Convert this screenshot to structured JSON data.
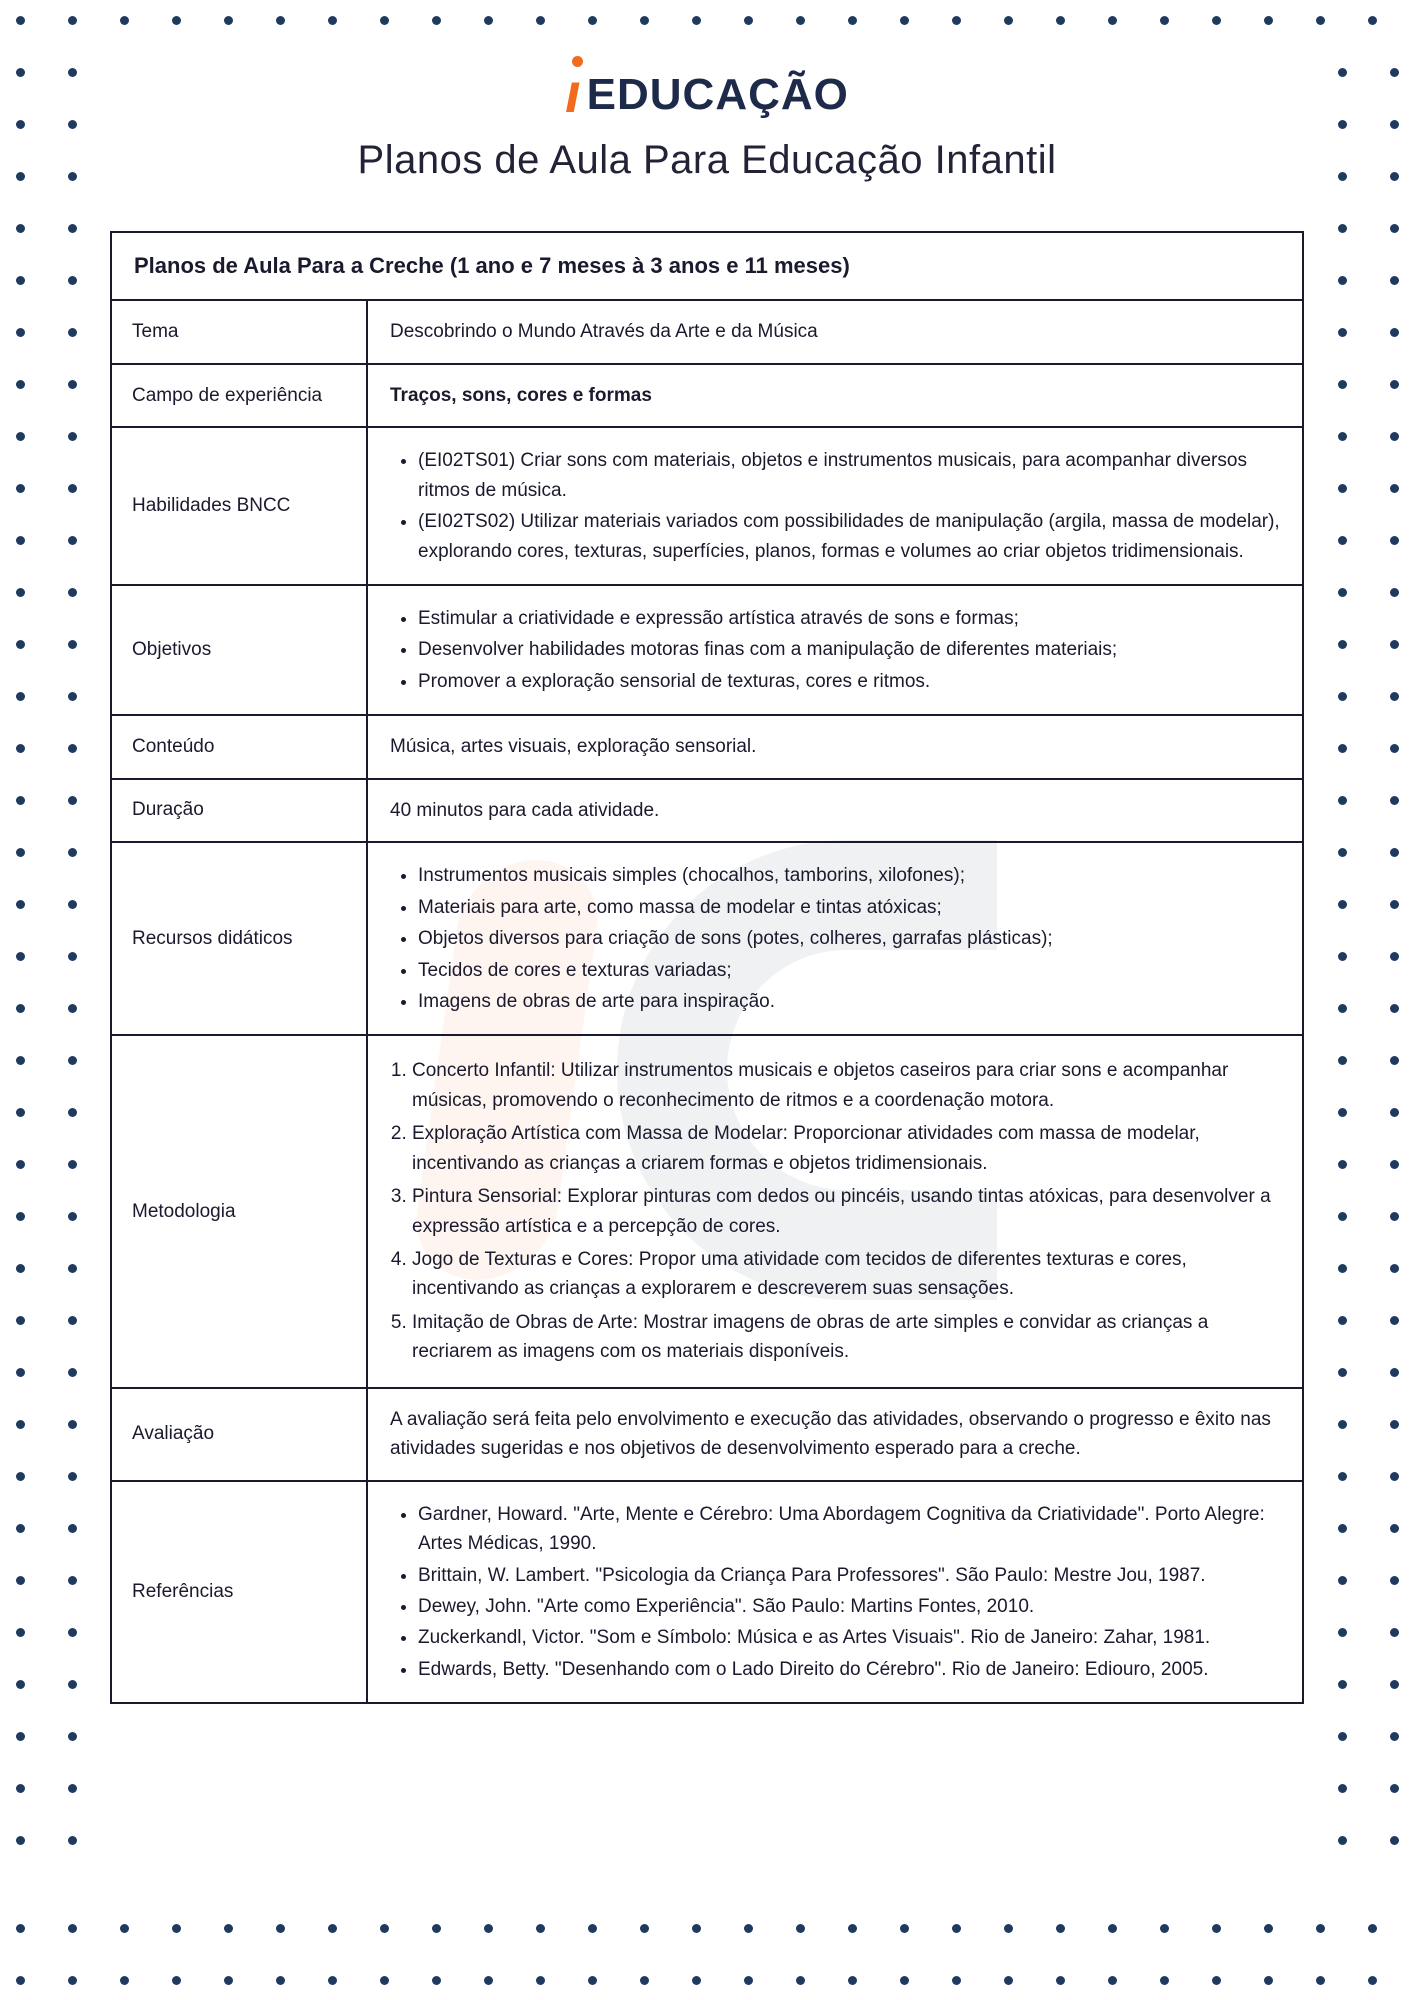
{
  "brand": {
    "accent_color": "#f26b1d",
    "text_color": "#1e2a4a",
    "word": "EDUCAÇÃO"
  },
  "page_title": "Planos de Aula Para Educação Infantil",
  "dot_color": "#1e3a5f",
  "table": {
    "title": "Planos de Aula Para a Creche (1 ano e 7 meses à 3 anos e 11 meses)",
    "rows": {
      "tema": {
        "label": "Tema",
        "value": "Descobrindo o Mundo Através da Arte e da Música"
      },
      "campo": {
        "label": "Campo de experiência",
        "value": "Traços, sons, cores e formas"
      },
      "habilidades": {
        "label": "Habilidades BNCC",
        "items": [
          "(EI02TS01) Criar sons com materiais, objetos e instrumentos musicais, para acompanhar diversos ritmos de música.",
          "(EI02TS02) Utilizar materiais variados com possibilidades de manipulação (argila, massa de modelar), explorando cores, texturas, superfícies, planos, formas e volumes ao criar objetos tridimensionais."
        ]
      },
      "objetivos": {
        "label": "Objetivos",
        "items": [
          "Estimular a criatividade e expressão artística através de sons e formas;",
          "Desenvolver habilidades motoras finas com a manipulação de diferentes materiais;",
          "Promover a exploração sensorial de texturas, cores e ritmos."
        ]
      },
      "conteudo": {
        "label": "Conteúdo",
        "value": "Música, artes visuais, exploração sensorial."
      },
      "duracao": {
        "label": "Duração",
        "value": "40 minutos para cada atividade."
      },
      "recursos": {
        "label": "Recursos didáticos",
        "items": [
          "Instrumentos musicais simples (chocalhos, tamborins, xilofones);",
          "Materiais para arte, como massa de modelar e tintas atóxicas;",
          "Objetos diversos para criação de sons (potes, colheres, garrafas plásticas);",
          "Tecidos de cores e texturas variadas;",
          "Imagens de obras de arte para inspiração."
        ]
      },
      "metodologia": {
        "label": "Metodologia",
        "items": [
          "Concerto Infantil: Utilizar instrumentos musicais e objetos caseiros para criar sons e acompanhar músicas, promovendo o reconhecimento de ritmos e a coordenação motora.",
          "Exploração Artística com Massa de Modelar: Proporcionar atividades com massa de modelar, incentivando as crianças a criarem formas e objetos tridimensionais.",
          "Pintura Sensorial: Explorar pinturas com dedos ou pincéis, usando tintas atóxicas, para desenvolver a expressão artística e a percepção de cores.",
          "Jogo de Texturas e Cores: Propor uma atividade com tecidos de diferentes texturas e cores, incentivando as crianças a explorarem e descreverem suas sensações.",
          "Imitação de Obras de Arte: Mostrar imagens de obras de arte simples e convidar as crianças a recriarem as imagens com os materiais disponíveis."
        ]
      },
      "avaliacao": {
        "label": "Avaliação",
        "value": "A avaliação será feita pelo envolvimento e execução das atividades, observando o progresso e êxito nas atividades sugeridas e nos objetivos de desenvolvimento esperado para a creche."
      },
      "referencias": {
        "label": "Referências",
        "items": [
          "Gardner, Howard. \"Arte, Mente e Cérebro: Uma Abordagem Cognitiva da Criatividade\". Porto Alegre: Artes Médicas, 1990.",
          "Brittain, W. Lambert. \"Psicologia da Criança Para Professores\". São Paulo: Mestre Jou, 1987.",
          "Dewey, John. \"Arte como Experiência\". São Paulo: Martins Fontes, 2010.",
          "Zuckerkandl, Victor. \"Som e Símbolo: Música e as Artes Visuais\". Rio de Janeiro: Zahar, 1981.",
          "Edwards, Betty. \"Desenhando com o Lado Direito do Cérebro\". Rio de Janeiro: Ediouro, 2005."
        ]
      }
    }
  }
}
